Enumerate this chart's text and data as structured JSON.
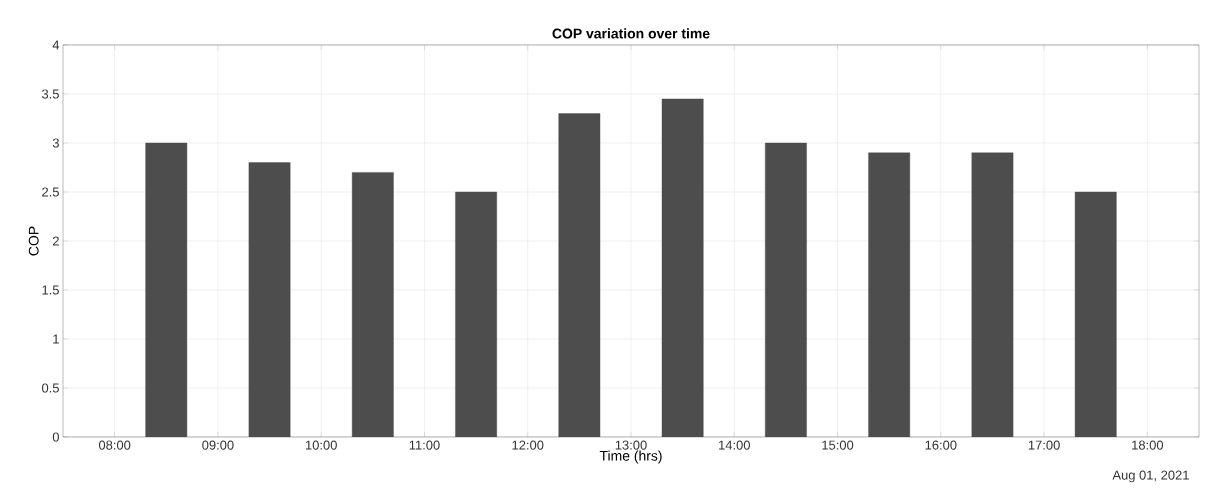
{
  "chart_data": {
    "type": "bar",
    "title": "COP variation over time",
    "xlabel": "Time (hrs)",
    "ylabel": "COP",
    "x": [
      8.5,
      9.5,
      10.5,
      11.5,
      12.5,
      13.5,
      14.5,
      15.5,
      16.5,
      17.5
    ],
    "values": [
      3,
      2.8,
      2.7,
      2.5,
      3.3,
      3.45,
      3.0,
      2.9,
      2.9,
      2.5
    ],
    "color": "#4d4d4d",
    "xlim": [
      7.5,
      18.5
    ],
    "xticks": [
      {
        "value": 8,
        "label": "08:00"
      },
      {
        "value": 9,
        "label": "09:00"
      },
      {
        "value": 10,
        "label": "10:00"
      },
      {
        "value": 11,
        "label": "11:00"
      },
      {
        "value": 12,
        "label": "12:00"
      },
      {
        "value": 13,
        "label": "13:00"
      },
      {
        "value": 14,
        "label": "14:00"
      },
      {
        "value": 15,
        "label": "15:00"
      },
      {
        "value": 16,
        "label": "16:00"
      },
      {
        "value": 17,
        "label": "17:00"
      },
      {
        "value": 18,
        "label": "18:00"
      }
    ],
    "ylim": [
      0,
      4
    ],
    "yticks": [
      0,
      0.5,
      1,
      1.5,
      2,
      2.5,
      3,
      3.5,
      4
    ],
    "grid": true,
    "annotations": [
      "Aug 01, 2021"
    ]
  }
}
